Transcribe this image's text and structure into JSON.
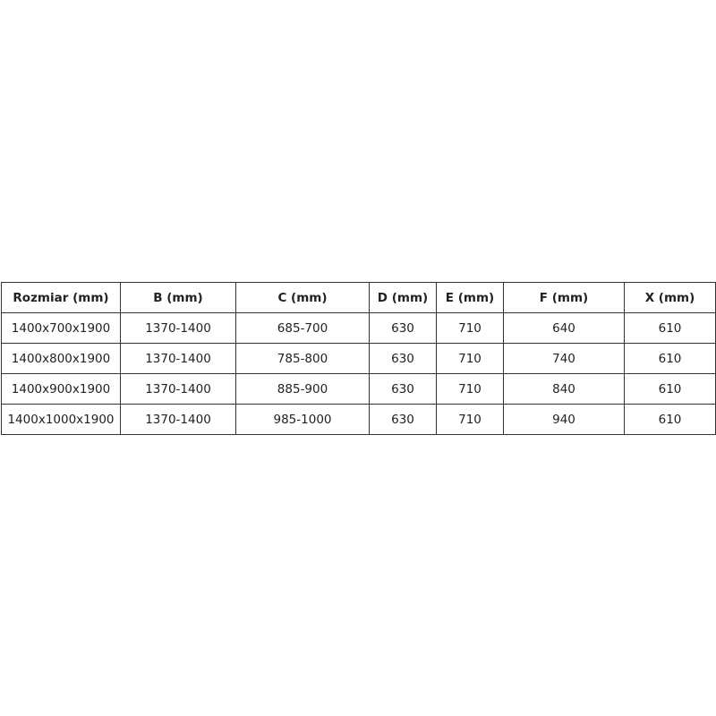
{
  "table": {
    "headers": [
      "Rozmiar (mm)",
      "B (mm)",
      "C (mm)",
      "D (mm)",
      "E (mm)",
      "F (mm)",
      "X (mm)"
    ],
    "rows": [
      [
        "1400x700x1900",
        "1370-1400",
        "685-700",
        "630",
        "710",
        "640",
        "610"
      ],
      [
        "1400x800x1900",
        "1370-1400",
        "785-800",
        "630",
        "710",
        "740",
        "610"
      ],
      [
        "1400x900x1900",
        "1370-1400",
        "885-900",
        "630",
        "710",
        "840",
        "610"
      ],
      [
        "1400x1000x1900",
        "1370-1400",
        "985-1000",
        "630",
        "710",
        "940",
        "610"
      ]
    ]
  }
}
